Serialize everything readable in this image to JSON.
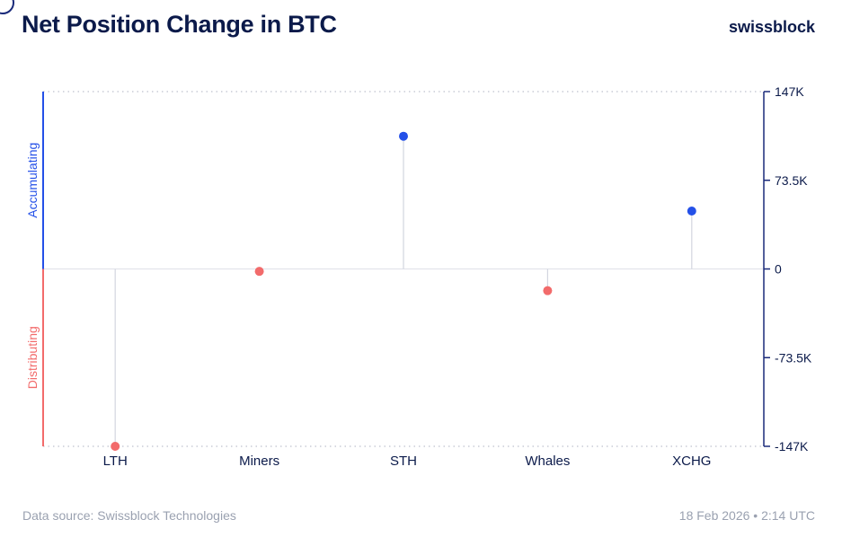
{
  "header": {
    "title": "Net Position Change in BTC",
    "brand": "swissblock"
  },
  "footer": {
    "source": "Data source: Swissblock Technologies",
    "timestamp": "18 Feb 2026 • 2:14 UTC"
  },
  "chart_data": {
    "type": "scatter",
    "categories": [
      "LTH",
      "Miners",
      "STH",
      "Whales",
      "XCHG"
    ],
    "values": [
      -147000,
      -2000,
      110000,
      -18000,
      48000
    ],
    "ylim": [
      -147000,
      147000
    ],
    "yticks": [
      147000,
      73500,
      0,
      -73500,
      -147000
    ],
    "ytick_labels": [
      "147K",
      "73.5K",
      "0",
      "-73.5K",
      "-147K"
    ],
    "side_labels": {
      "positive": "Accumulating",
      "negative": "Distributing"
    },
    "colors": {
      "positive": "#2450e8",
      "negative": "#f26b6b",
      "stem": "#d3d6e0",
      "axis": "#1a2a7a",
      "grid": "#c9ccd6"
    },
    "grid": true
  }
}
